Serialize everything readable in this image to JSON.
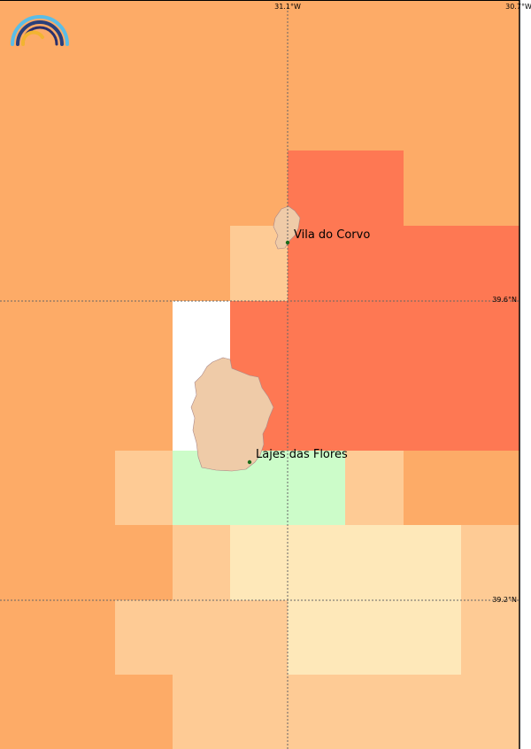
{
  "map": {
    "graticule": {
      "lon": [
        "31.1°W",
        "30.7°W"
      ],
      "lat": [
        "39.6°N",
        "39.2°N"
      ]
    },
    "places": [
      "Vila do Corvo",
      "Lajes das Flores"
    ]
  }
}
